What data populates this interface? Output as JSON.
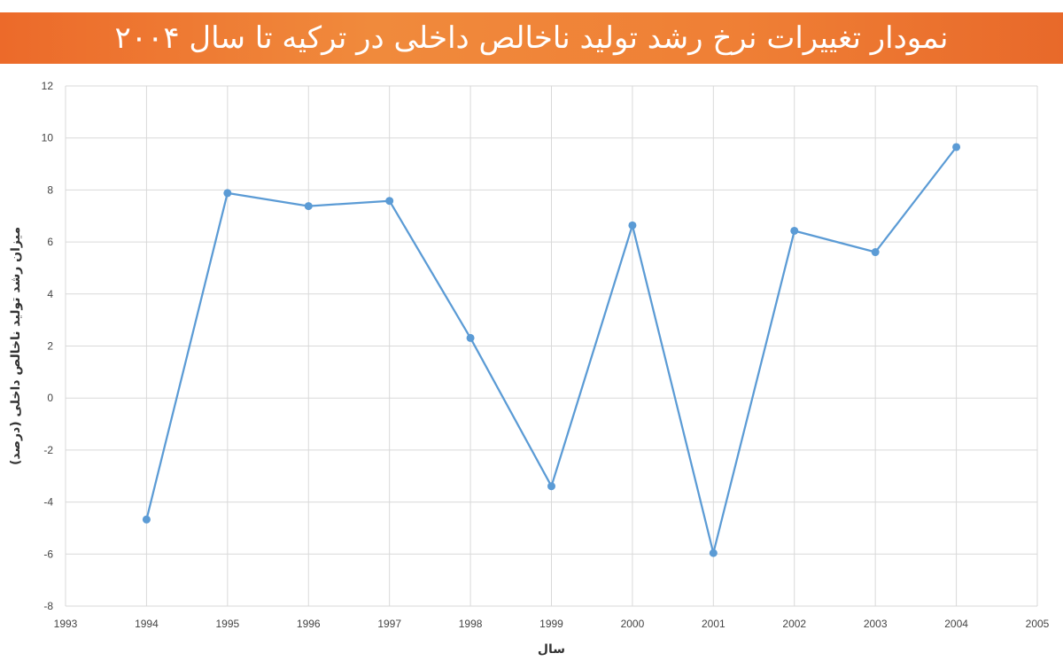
{
  "title": "نمودار تغییرات نرخ رشد تولید ناخالص داخلی در ترکیه تا سال ۲۰۰۴",
  "colors": {
    "banner": "#ef7f35",
    "series": "#5b9bd5",
    "grid": "#d9d9d9"
  },
  "chart_data": {
    "type": "scatter",
    "mode": "lines+markers",
    "xlabel": "سال",
    "ylabel": "میزان رشد تولید ناخالص داخلی (درصد)",
    "xlim": [
      1993,
      2005
    ],
    "ylim": [
      -8,
      12
    ],
    "xticks": [
      1993,
      1994,
      1995,
      1996,
      1997,
      1998,
      1999,
      2000,
      2001,
      2002,
      2003,
      2004,
      2005
    ],
    "yticks": [
      -8,
      -6,
      -4,
      -2,
      0,
      2,
      4,
      6,
      8,
      10,
      12
    ],
    "grid": true,
    "series": [
      {
        "x": [
          1994,
          1995,
          1996,
          1997,
          1998,
          1999,
          2000,
          2001,
          2002,
          2003,
          2004
        ],
        "y": [
          -4.67,
          7.88,
          7.38,
          7.58,
          2.31,
          -3.39,
          6.64,
          -5.96,
          6.43,
          5.61,
          9.65
        ]
      }
    ]
  }
}
